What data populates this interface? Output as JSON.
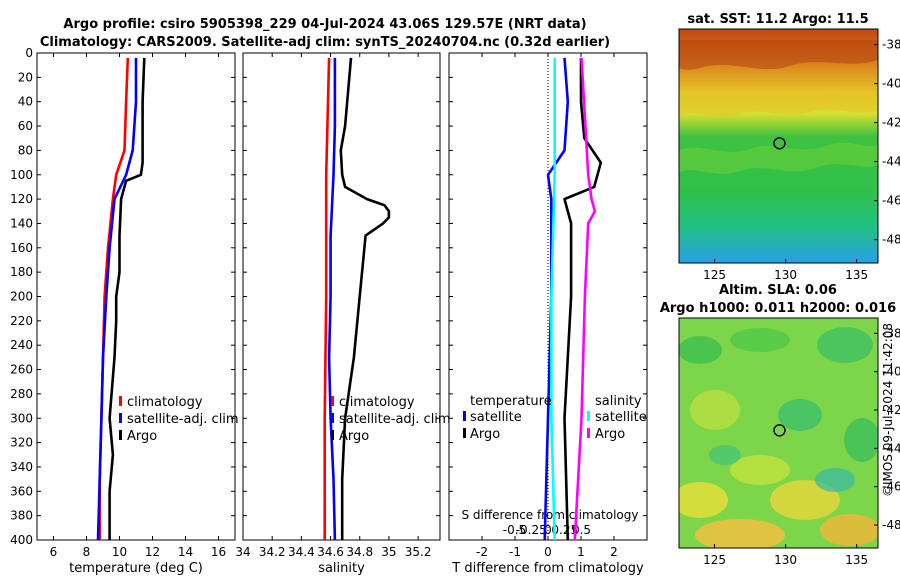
{
  "header": {
    "title_line1": "Argo profile: csiro 5905398_229 04-Jul-2024 43.06S 129.57E (NRT data)",
    "title_line2": "Climatology: CARS2009. Satellite-adj clim: synTS_20240704.nc (0.32d earlier)"
  },
  "watermark": "©IMOS 09-Jul-2024 11:42:08",
  "colors": {
    "climatology": "#ff0000",
    "satellite": "#0000ff",
    "argo": "#000000",
    "sal_satellite": "#00ffff",
    "sal_argo": "#ff00ff"
  },
  "chart_data": [
    {
      "type": "line",
      "name": "temperature-profile",
      "xlabel": "temperature (deg C)",
      "xlim": [
        5,
        17
      ],
      "xticks": [
        6,
        8,
        10,
        12,
        14,
        16
      ],
      "ylim": [
        0,
        400
      ],
      "yticks": [
        0,
        20,
        40,
        60,
        80,
        100,
        120,
        140,
        160,
        180,
        200,
        220,
        240,
        260,
        280,
        300,
        320,
        340,
        360,
        380,
        400
      ],
      "legend": [
        "climatology",
        "satellite-adj. clim",
        "Argo"
      ],
      "series": [
        {
          "name": "climatology",
          "depth": [
            4,
            40,
            80,
            100,
            120,
            160,
            200,
            250,
            300,
            350,
            400
          ],
          "values": [
            10.5,
            10.4,
            10.3,
            9.8,
            9.6,
            9.3,
            9.1,
            9.0,
            8.9,
            8.8,
            8.8
          ]
        },
        {
          "name": "satellite-adj. clim",
          "depth": [
            4,
            40,
            80,
            100,
            120,
            160,
            200,
            250,
            300,
            350,
            400
          ],
          "values": [
            11.0,
            11.0,
            10.8,
            10.4,
            9.7,
            9.4,
            9.2,
            9.0,
            8.9,
            8.8,
            8.7
          ]
        },
        {
          "name": "Argo",
          "depth": [
            4,
            40,
            70,
            90,
            100,
            105,
            120,
            150,
            180,
            200,
            220,
            250,
            300,
            330,
            360,
            400
          ],
          "values": [
            11.5,
            11.4,
            11.4,
            11.4,
            11.3,
            10.4,
            10.1,
            10.0,
            10.0,
            9.8,
            9.8,
            9.7,
            9.4,
            9.6,
            9.4,
            9.4
          ]
        }
      ]
    },
    {
      "type": "line",
      "name": "salinity-profile",
      "xlabel": "salinity",
      "xlim": [
        34.0,
        35.35
      ],
      "xticks": [
        34,
        34.2,
        34.4,
        34.6,
        34.8,
        35,
        35.2
      ],
      "ylim": [
        0,
        400
      ],
      "legend": [
        "climatology",
        "satellite-adj. clim",
        "Argo"
      ],
      "series": [
        {
          "name": "climatology",
          "depth": [
            4,
            100,
            200,
            300,
            400
          ],
          "values": [
            34.59,
            34.57,
            34.57,
            34.56,
            34.56
          ]
        },
        {
          "name": "satellite-adj. clim",
          "depth": [
            4,
            60,
            100,
            150,
            200,
            250,
            300,
            350,
            400
          ],
          "values": [
            34.63,
            34.63,
            34.62,
            34.6,
            34.6,
            34.59,
            34.6,
            34.62,
            34.63
          ]
        },
        {
          "name": "Argo",
          "depth": [
            4,
            60,
            80,
            100,
            110,
            120,
            125,
            130,
            135,
            140,
            150,
            200,
            250,
            300,
            350,
            400
          ],
          "values": [
            34.74,
            34.7,
            34.67,
            34.68,
            34.7,
            34.85,
            34.97,
            35.0,
            35.0,
            34.96,
            34.84,
            34.8,
            34.76,
            34.7,
            34.68,
            34.68
          ]
        }
      ]
    },
    {
      "type": "line",
      "name": "difference-profile",
      "xlabel": "T difference from climatology",
      "xlim": [
        -3,
        3
      ],
      "xticks": [
        -2,
        -1,
        0,
        1,
        2
      ],
      "top_label": "S difference from climatology",
      "top_ticks": [
        "-0.5",
        "-0.25",
        "0",
        "0.25",
        "0.5"
      ],
      "ylim": [
        0,
        400
      ],
      "legend_temperature": {
        "heading": "temperature",
        "items": [
          "satellite",
          "Argo"
        ]
      },
      "legend_salinity": {
        "heading": "salinity",
        "items": [
          "satellite",
          "Argo"
        ]
      },
      "series": [
        {
          "name": "T satellite",
          "depth": [
            4,
            40,
            80,
            100,
            120,
            160,
            200,
            300,
            400
          ],
          "values": [
            0.5,
            0.6,
            0.5,
            0,
            0.1,
            0.1,
            0.1,
            0,
            -0.1
          ]
        },
        {
          "name": "T Argo",
          "depth": [
            4,
            40,
            70,
            90,
            100,
            110,
            120,
            140,
            200,
            300,
            400
          ],
          "values": [
            1.0,
            1.0,
            1.1,
            1.6,
            1.5,
            1.4,
            0.5,
            0.7,
            0.7,
            0.5,
            0.6
          ]
        },
        {
          "name": "S satellite",
          "depth": [
            4,
            100,
            200,
            300,
            400
          ],
          "values": [
            0.1,
            0.1,
            0.05,
            0.05,
            0.1
          ]
        },
        {
          "name": "S Argo",
          "depth": [
            4,
            100,
            120,
            130,
            140,
            200,
            300,
            400
          ],
          "values": [
            0.5,
            0.6,
            0.65,
            0.7,
            0.6,
            0.55,
            0.5,
            0.4
          ]
        }
      ]
    },
    {
      "type": "heatmap",
      "name": "sst-map",
      "title": "sat. SST: 11.2 Argo: 11.5",
      "xticks": [
        125,
        130,
        135
      ],
      "yticks": [
        -38,
        -40,
        -42,
        -44,
        -46,
        -48
      ],
      "xlim": [
        122.5,
        136.5
      ],
      "ylim": [
        -49.2,
        -37.2
      ],
      "marker": {
        "lon": 129.57,
        "lat": -43.06
      }
    },
    {
      "type": "heatmap",
      "name": "sla-map",
      "title_line1": "Altim. SLA: 0.06",
      "title_line2": "Argo h1000: 0.011 h2000: 0.016",
      "xticks": [
        125,
        130,
        135
      ],
      "yticks": [
        -38,
        -40,
        -42,
        -44,
        -46,
        -48
      ],
      "xlim": [
        122.5,
        136.5
      ],
      "ylim": [
        -49.2,
        -37.2
      ],
      "marker": {
        "lon": 129.57,
        "lat": -43.06
      }
    }
  ]
}
